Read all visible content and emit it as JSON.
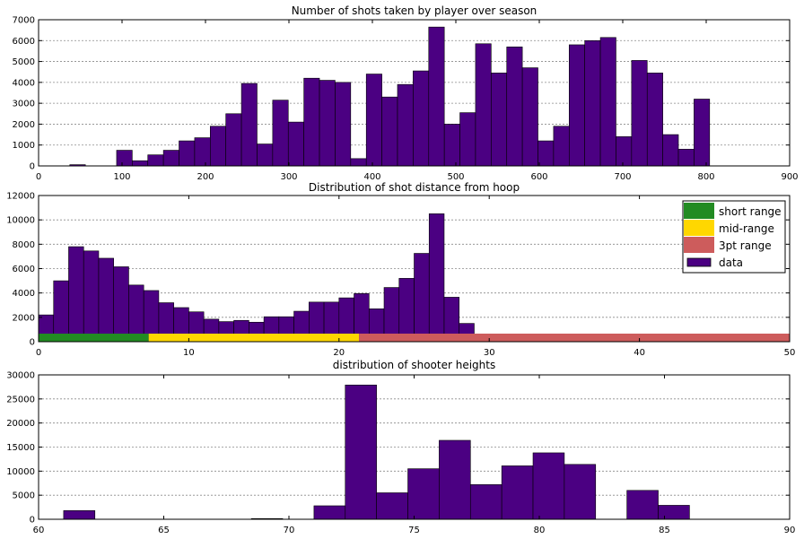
{
  "chart_data": [
    {
      "type": "bar",
      "title": "Number of shots taken by player over season",
      "xlabel": "",
      "ylabel": "",
      "xlim": [
        0,
        900
      ],
      "ylim": [
        0,
        7000
      ],
      "xticks": [
        0,
        100,
        200,
        300,
        400,
        500,
        600,
        700,
        800,
        900
      ],
      "yticks": [
        0,
        1000,
        2000,
        3000,
        4000,
        5000,
        6000,
        7000
      ],
      "grid": "horizontal",
      "bar_color": "#4b0082",
      "bins": [
        [
          0,
          18.7,
          0
        ],
        [
          18.7,
          37.4,
          0
        ],
        [
          37.4,
          56.1,
          60
        ],
        [
          56.1,
          74.8,
          0
        ],
        [
          74.8,
          93.5,
          0
        ],
        [
          93.5,
          112.2,
          750
        ],
        [
          112.2,
          130.9,
          250
        ],
        [
          130.9,
          149.6,
          530
        ],
        [
          149.6,
          168.3,
          750
        ],
        [
          168.3,
          187,
          1200
        ],
        [
          187,
          205.7,
          1350
        ],
        [
          205.7,
          224.4,
          1900
        ],
        [
          224.4,
          243.1,
          2500
        ],
        [
          243.1,
          261.8,
          3950
        ],
        [
          261.8,
          280.5,
          1050
        ],
        [
          280.5,
          299.2,
          3150
        ],
        [
          299.2,
          317.9,
          2100
        ],
        [
          317.9,
          336.6,
          4200
        ],
        [
          336.6,
          355.3,
          4100
        ],
        [
          355.3,
          374,
          4000
        ],
        [
          374,
          392.7,
          350
        ],
        [
          392.7,
          411.4,
          4400
        ],
        [
          411.4,
          430.1,
          3300
        ],
        [
          430.1,
          448.8,
          3900
        ],
        [
          448.8,
          467.5,
          4550
        ],
        [
          467.5,
          486.2,
          6650
        ],
        [
          486.2,
          504.9,
          2000
        ],
        [
          504.9,
          523.6,
          2550
        ],
        [
          523.6,
          542.3,
          5850
        ],
        [
          542.3,
          561,
          4450
        ],
        [
          561,
          579.7,
          5700
        ],
        [
          579.7,
          598.4,
          4700
        ],
        [
          598.4,
          617.1,
          1200
        ],
        [
          617.1,
          635.8,
          1900
        ],
        [
          635.8,
          654.5,
          5800
        ],
        [
          654.5,
          673.2,
          6000
        ],
        [
          673.2,
          691.9,
          6150
        ],
        [
          691.9,
          710.6,
          1400
        ],
        [
          710.6,
          729.3,
          5050
        ],
        [
          729.3,
          748,
          4450
        ],
        [
          748,
          766.7,
          1500
        ],
        [
          766.7,
          785.4,
          800
        ],
        [
          785.4,
          804.1,
          3200
        ]
      ]
    },
    {
      "type": "bar",
      "title": "Distribution of shot distance from hoop",
      "xlabel": "",
      "ylabel": "",
      "xlim": [
        0,
        50
      ],
      "ylim": [
        0,
        12000
      ],
      "xticks": [
        0,
        10,
        20,
        30,
        40,
        50
      ],
      "yticks": [
        0,
        2000,
        4000,
        6000,
        8000,
        10000,
        12000
      ],
      "grid": "horizontal",
      "bar_color": "#4b0082",
      "bins": [
        [
          0,
          1,
          2200
        ],
        [
          1,
          2,
          5000
        ],
        [
          2,
          3,
          7800
        ],
        [
          3,
          4,
          7450
        ],
        [
          4,
          5,
          6850
        ],
        [
          5,
          6,
          6150
        ],
        [
          6,
          7,
          4650
        ],
        [
          7,
          8,
          4200
        ],
        [
          8,
          9,
          3200
        ],
        [
          9,
          10,
          2800
        ],
        [
          10,
          11,
          2450
        ],
        [
          11,
          12,
          1850
        ],
        [
          12,
          13,
          1650
        ],
        [
          13,
          14,
          1750
        ],
        [
          14,
          15,
          1600
        ],
        [
          15,
          16,
          2050
        ],
        [
          16,
          17,
          2050
        ],
        [
          17,
          18,
          2500
        ],
        [
          18,
          19,
          3250
        ],
        [
          19,
          20,
          3250
        ],
        [
          20,
          21,
          3600
        ],
        [
          21,
          22,
          3950
        ],
        [
          22,
          23,
          2700
        ],
        [
          23,
          24,
          4450
        ],
        [
          24,
          25,
          5200
        ],
        [
          25,
          26,
          7250
        ],
        [
          26,
          27,
          10500
        ],
        [
          27,
          28,
          3650
        ],
        [
          28,
          29,
          1500
        ]
      ],
      "ranges": [
        {
          "name": "short range",
          "from": 0,
          "to": 7.33,
          "color": "#228b22"
        },
        {
          "name": "mid-range",
          "from": 7.33,
          "to": 21.33,
          "color": "#ffd700"
        },
        {
          "name": "3pt range",
          "from": 21.33,
          "to": 50,
          "color": "#cd5c5c"
        }
      ],
      "legend": {
        "placement": "top-right",
        "entries": [
          {
            "label": "short range",
            "color": "#228b22"
          },
          {
            "label": "mid-range",
            "color": "#ffd700"
          },
          {
            "label": "3pt range",
            "color": "#cd5c5c"
          },
          {
            "label": "data",
            "color": "#4b0082"
          }
        ]
      }
    },
    {
      "type": "bar",
      "title": "distribution of shooter heights",
      "xlabel": "",
      "ylabel": "",
      "xlim": [
        60,
        90
      ],
      "ylim": [
        0,
        30000
      ],
      "xticks": [
        60,
        65,
        70,
        75,
        80,
        85,
        90
      ],
      "yticks": [
        0,
        5000,
        10000,
        15000,
        20000,
        25000,
        30000
      ],
      "grid": "horizontal",
      "bar_color": "#4b0082",
      "bins": [
        [
          61,
          62.25,
          1800
        ],
        [
          68.5,
          69.75,
          150
        ],
        [
          71,
          72.25,
          2800
        ],
        [
          72.25,
          73.5,
          27900
        ],
        [
          73.5,
          74.75,
          5500
        ],
        [
          74.75,
          76,
          10500
        ],
        [
          76,
          77.25,
          16400
        ],
        [
          77.25,
          78.5,
          7200
        ],
        [
          78.5,
          79.75,
          11100
        ],
        [
          79.75,
          81,
          13800
        ],
        [
          81,
          82.25,
          11400
        ],
        [
          83.5,
          84.75,
          6000
        ],
        [
          84.75,
          86,
          2900
        ]
      ]
    }
  ]
}
